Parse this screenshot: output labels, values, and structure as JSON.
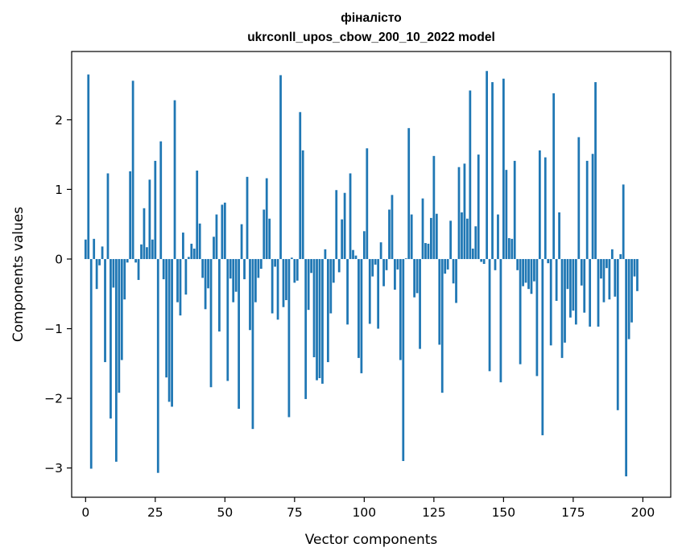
{
  "chart_data": {
    "type": "bar",
    "title_line1": "фіналісто",
    "title_line2": "ukrconll_upos_cbow_200_10_2022 model",
    "xlabel": "Vector components",
    "ylabel": "Components values",
    "xlim": [
      -5,
      210
    ],
    "ylim": [
      -3.42,
      2.98
    ],
    "xticks": [
      0,
      25,
      50,
      75,
      100,
      125,
      150,
      175,
      200
    ],
    "yticks": [
      -3,
      -2,
      -1,
      0,
      1,
      2
    ],
    "ytick_labels": [
      "−3",
      "−2",
      "−1",
      "0",
      "1",
      "2"
    ],
    "bar_color": "#1f77b4",
    "grid": false,
    "values": [
      0.28,
      2.65,
      -3.01,
      0.29,
      -0.43,
      -0.09,
      0.18,
      -1.48,
      1.23,
      -2.29,
      -0.41,
      -2.91,
      -1.92,
      -1.45,
      -0.58,
      -0.05,
      1.26,
      2.56,
      -0.05,
      -0.3,
      0.21,
      0.73,
      0.17,
      1.14,
      0.28,
      1.41,
      -3.07,
      1.69,
      -0.29,
      -1.7,
      -2.05,
      -2.12,
      2.28,
      -0.62,
      -0.81,
      0.38,
      -0.51,
      0.03,
      0.22,
      0.15,
      1.27,
      0.51,
      -0.27,
      -0.72,
      -0.42,
      -1.84,
      0.32,
      0.64,
      -1.04,
      0.78,
      0.81,
      -1.75,
      -0.28,
      -0.62,
      -0.47,
      -2.15,
      0.5,
      -0.29,
      1.18,
      -1.02,
      -2.44,
      -0.62,
      -0.27,
      -0.14,
      0.71,
      1.16,
      0.58,
      -0.78,
      -0.11,
      -0.87,
      2.64,
      -0.69,
      -0.59,
      -2.27,
      0.02,
      -0.34,
      -0.31,
      2.11,
      1.56,
      -2.01,
      -0.73,
      -0.2,
      -1.41,
      -1.74,
      -1.71,
      -1.79,
      0.14,
      -1.48,
      -0.78,
      -0.34,
      0.99,
      -0.19,
      0.57,
      0.95,
      -0.94,
      1.23,
      0.13,
      0.05,
      -1.42,
      -1.64,
      0.4,
      1.59,
      -0.93,
      -0.25,
      -0.08,
      -1.0,
      0.24,
      -0.39,
      -0.16,
      0.71,
      0.92,
      -0.44,
      -0.15,
      -1.45,
      -2.9,
      0.01,
      1.88,
      0.64,
      -0.55,
      -0.49,
      -1.29,
      0.87,
      0.23,
      0.22,
      0.59,
      1.48,
      0.65,
      -1.23,
      -1.92,
      -0.21,
      -0.15,
      0.55,
      -0.35,
      -0.63,
      1.32,
      0.67,
      1.37,
      0.58,
      2.42,
      0.15,
      0.47,
      1.5,
      -0.04,
      -0.07,
      2.7,
      -1.61,
      2.54,
      -0.16,
      0.64,
      -1.77,
      2.59,
      1.28,
      0.3,
      0.29,
      1.41,
      -0.16,
      -1.51,
      -0.39,
      -0.34,
      -0.43,
      -0.5,
      -0.32,
      -1.68,
      1.56,
      -2.53,
      1.46,
      -0.06,
      -1.24,
      2.38,
      -0.6,
      0.67,
      -1.42,
      -1.2,
      -0.43,
      -0.84,
      -0.74,
      -0.94,
      1.75,
      -0.38,
      -0.77,
      1.41,
      -0.97,
      1.51,
      2.54,
      -0.97,
      -0.28,
      -0.62,
      -0.13,
      -0.58,
      0.14,
      -0.54,
      -2.17,
      0.07,
      1.07,
      -3.12,
      -1.15,
      -0.91,
      -0.25,
      -0.46
    ]
  }
}
